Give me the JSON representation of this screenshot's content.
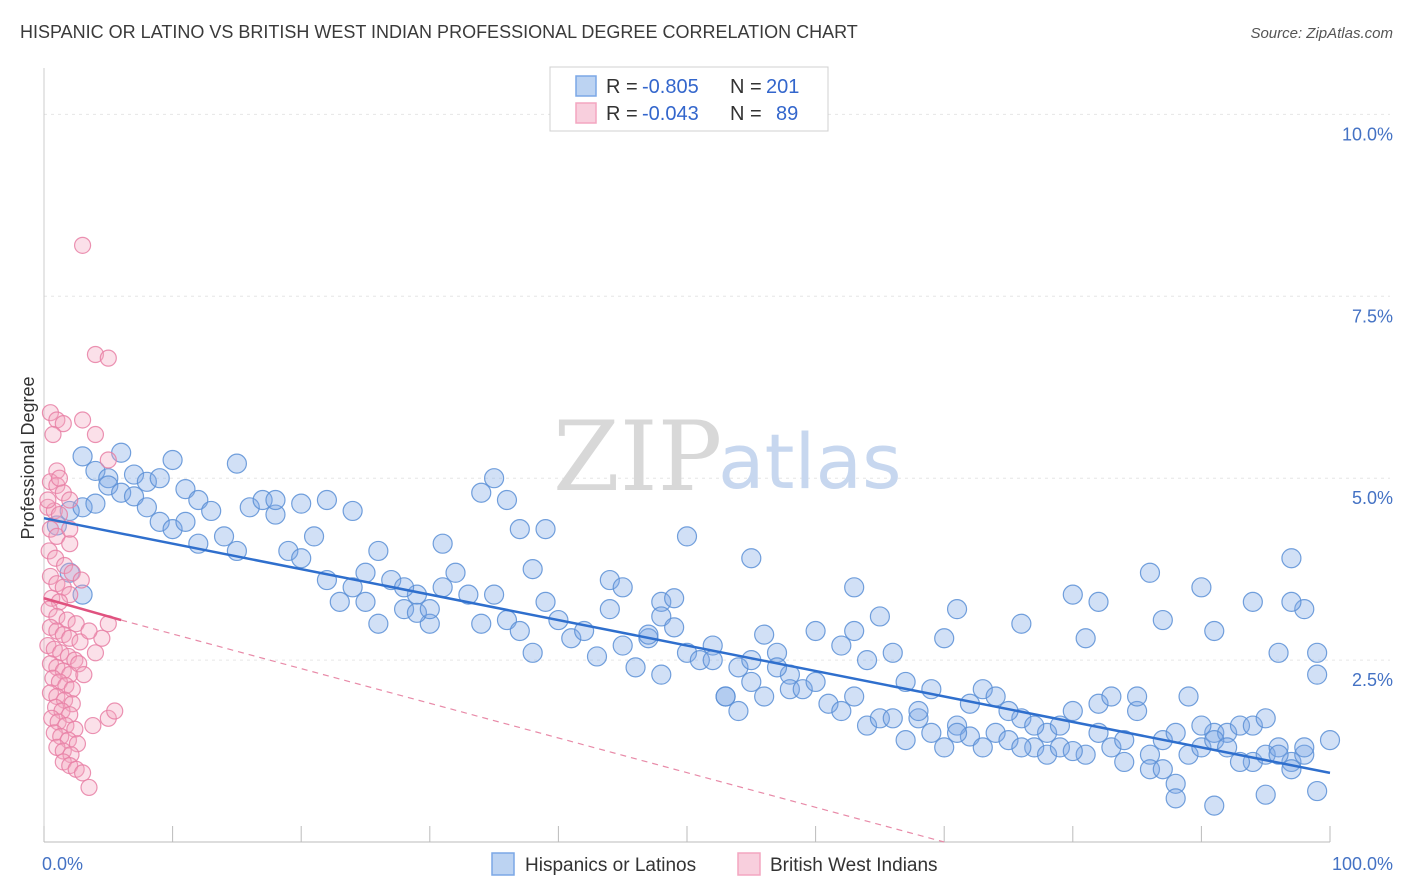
{
  "chart_data": {
    "type": "scatter",
    "title": "HISPANIC OR LATINO VS BRITISH WEST INDIAN PROFESSIONAL DEGREE CORRELATION CHART",
    "source": "Source: ZipAtlas.com",
    "ylabel": "Professional Degree",
    "xlim": [
      0,
      100
    ],
    "ylim": [
      0,
      10.5
    ],
    "x_tick_labels": [
      {
        "value": 0,
        "label": "0.0%"
      },
      {
        "value": 100,
        "label": "100.0%"
      }
    ],
    "y_tick_labels": [
      {
        "value": 2.5,
        "label": "2.5%"
      },
      {
        "value": 5.0,
        "label": "5.0%"
      },
      {
        "value": 7.5,
        "label": "7.5%"
      },
      {
        "value": 10.0,
        "label": "10.0%"
      }
    ],
    "grid": true,
    "watermark": {
      "part1": "ZIP",
      "part2": "atlas"
    },
    "legend": {
      "placement": "top-center",
      "entries": [
        {
          "r_label": "R =",
          "r_value": "-0.805",
          "n_label": "N =",
          "n_value": "201",
          "color": "#7ba7e6"
        },
        {
          "r_label": "R =",
          "r_value": "-0.043",
          "n_label": "N =",
          "n_value": "89",
          "color": "#f4a6c0"
        }
      ]
    },
    "series": [
      {
        "name": "Hispanics or Latinos",
        "color": "#7ba7e6",
        "stroke": "#5b8fd6",
        "trend": {
          "x0": 0,
          "y0": 4.45,
          "x1": 100,
          "y1": 0.95,
          "color": "#2f6fcd"
        },
        "points": [
          [
            3,
            5.3
          ],
          [
            4,
            5.1
          ],
          [
            5,
            5.0
          ],
          [
            6,
            5.35
          ],
          [
            7,
            5.05
          ],
          [
            8,
            4.95
          ],
          [
            9,
            5.0
          ],
          [
            10,
            5.25
          ],
          [
            11,
            4.85
          ],
          [
            12,
            4.7
          ],
          [
            2,
            4.55
          ],
          [
            3,
            4.6
          ],
          [
            4,
            4.65
          ],
          [
            5,
            4.9
          ],
          [
            6,
            4.8
          ],
          [
            7,
            4.75
          ],
          [
            8,
            4.6
          ],
          [
            9,
            4.4
          ],
          [
            10,
            4.3
          ],
          [
            12,
            4.1
          ],
          [
            1,
            4.35
          ],
          [
            2,
            3.7
          ],
          [
            3,
            3.4
          ],
          [
            14,
            4.2
          ],
          [
            15,
            4.0
          ],
          [
            16,
            4.6
          ],
          [
            17,
            4.7
          ],
          [
            18,
            4.5
          ],
          [
            19,
            4.0
          ],
          [
            20,
            3.9
          ],
          [
            22,
            3.6
          ],
          [
            23,
            3.3
          ],
          [
            24,
            3.5
          ],
          [
            25,
            3.3
          ],
          [
            26,
            3.0
          ],
          [
            27,
            3.6
          ],
          [
            28,
            3.2
          ],
          [
            29,
            3.4
          ],
          [
            30,
            3.0
          ],
          [
            31,
            3.5
          ],
          [
            11,
            4.4
          ],
          [
            13,
            4.55
          ],
          [
            15,
            5.2
          ],
          [
            18,
            4.7
          ],
          [
            20,
            4.65
          ],
          [
            21,
            4.2
          ],
          [
            22,
            4.7
          ],
          [
            24,
            4.55
          ],
          [
            25,
            3.7
          ],
          [
            26,
            4.0
          ],
          [
            28,
            3.5
          ],
          [
            29,
            3.15
          ],
          [
            30,
            3.2
          ],
          [
            32,
            3.7
          ],
          [
            33,
            3.4
          ],
          [
            34,
            3.0
          ],
          [
            35,
            3.4
          ],
          [
            36,
            3.05
          ],
          [
            37,
            2.9
          ],
          [
            38,
            2.6
          ],
          [
            39,
            3.3
          ],
          [
            40,
            3.05
          ],
          [
            41,
            2.8
          ],
          [
            42,
            2.9
          ],
          [
            43,
            2.55
          ],
          [
            44,
            3.2
          ],
          [
            45,
            2.7
          ],
          [
            46,
            2.4
          ],
          [
            47,
            2.8
          ],
          [
            48,
            2.3
          ],
          [
            37,
            4.3
          ],
          [
            36,
            4.7
          ],
          [
            35,
            5.0
          ],
          [
            34,
            4.8
          ],
          [
            31,
            4.1
          ],
          [
            38,
            3.75
          ],
          [
            39,
            4.3
          ],
          [
            44,
            3.6
          ],
          [
            45,
            3.5
          ],
          [
            48,
            3.3
          ],
          [
            49,
            3.35
          ],
          [
            50,
            2.6
          ],
          [
            51,
            2.5
          ],
          [
            52,
            2.7
          ],
          [
            53,
            2.0
          ],
          [
            54,
            2.4
          ],
          [
            55,
            2.2
          ],
          [
            56,
            2.0
          ],
          [
            57,
            2.6
          ],
          [
            58,
            2.3
          ],
          [
            47,
            2.85
          ],
          [
            48,
            3.1
          ],
          [
            49,
            2.95
          ],
          [
            52,
            2.5
          ],
          [
            53,
            2.0
          ],
          [
            54,
            1.8
          ],
          [
            55,
            2.5
          ],
          [
            56,
            2.85
          ],
          [
            57,
            2.4
          ],
          [
            58,
            2.1
          ],
          [
            59,
            2.1
          ],
          [
            60,
            2.2
          ],
          [
            61,
            1.9
          ],
          [
            62,
            1.8
          ],
          [
            63,
            2.0
          ],
          [
            64,
            1.6
          ],
          [
            65,
            1.7
          ],
          [
            66,
            1.7
          ],
          [
            67,
            1.4
          ],
          [
            68,
            1.7
          ],
          [
            50,
            4.2
          ],
          [
            55,
            3.9
          ],
          [
            60,
            2.9
          ],
          [
            62,
            2.7
          ],
          [
            63,
            2.9
          ],
          [
            64,
            2.5
          ],
          [
            65,
            3.1
          ],
          [
            66,
            2.6
          ],
          [
            67,
            2.2
          ],
          [
            68,
            1.8
          ],
          [
            69,
            1.5
          ],
          [
            70,
            1.3
          ],
          [
            71,
            1.6
          ],
          [
            72,
            1.45
          ],
          [
            73,
            1.3
          ],
          [
            74,
            1.5
          ],
          [
            75,
            1.4
          ],
          [
            76,
            1.7
          ],
          [
            77,
            1.3
          ],
          [
            78,
            1.5
          ],
          [
            69,
            2.1
          ],
          [
            70,
            2.8
          ],
          [
            71,
            1.5
          ],
          [
            72,
            1.9
          ],
          [
            73,
            2.1
          ],
          [
            74,
            2.0
          ],
          [
            75,
            1.8
          ],
          [
            76,
            1.3
          ],
          [
            77,
            1.6
          ],
          [
            78,
            1.2
          ],
          [
            79,
            1.3
          ],
          [
            80,
            1.8
          ],
          [
            81,
            1.2
          ],
          [
            82,
            1.5
          ],
          [
            83,
            1.3
          ],
          [
            84,
            1.1
          ],
          [
            85,
            1.8
          ],
          [
            86,
            1.2
          ],
          [
            87,
            1.4
          ],
          [
            88,
            1.5
          ],
          [
            79,
            1.6
          ],
          [
            80,
            1.25
          ],
          [
            81,
            2.8
          ],
          [
            82,
            1.9
          ],
          [
            83,
            2.0
          ],
          [
            84,
            1.4
          ],
          [
            85,
            2.0
          ],
          [
            86,
            1.0
          ],
          [
            87,
            1.0
          ],
          [
            88,
            0.8
          ],
          [
            89,
            1.2
          ],
          [
            90,
            1.3
          ],
          [
            91,
            1.5
          ],
          [
            92,
            1.5
          ],
          [
            93,
            1.6
          ],
          [
            94,
            1.1
          ],
          [
            95,
            1.2
          ],
          [
            96,
            1.3
          ],
          [
            97,
            1.1
          ],
          [
            98,
            1.2
          ],
          [
            89,
            2.0
          ],
          [
            90,
            1.6
          ],
          [
            91,
            1.4
          ],
          [
            92,
            1.3
          ],
          [
            93,
            1.1
          ],
          [
            94,
            1.6
          ],
          [
            95,
            1.7
          ],
          [
            96,
            1.2
          ],
          [
            97,
            1.0
          ],
          [
            98,
            1.3
          ],
          [
            63,
            3.5
          ],
          [
            71,
            3.2
          ],
          [
            76,
            3.0
          ],
          [
            80,
            3.4
          ],
          [
            82,
            3.3
          ],
          [
            87,
            3.05
          ],
          [
            90,
            3.5
          ],
          [
            91,
            2.9
          ],
          [
            94,
            3.3
          ],
          [
            98,
            3.2
          ],
          [
            99,
            2.3
          ],
          [
            96,
            2.6
          ],
          [
            97,
            3.3
          ],
          [
            97,
            3.9
          ],
          [
            99,
            2.6
          ],
          [
            100,
            1.4
          ],
          [
            88,
            0.6
          ],
          [
            91,
            0.5
          ],
          [
            95,
            0.65
          ],
          [
            99,
            0.7
          ],
          [
            86,
            3.7
          ]
        ]
      },
      {
        "name": "British West Indians",
        "color": "#f4a6c0",
        "stroke": "#e77fa5",
        "trend": {
          "x0": 0,
          "y0": 3.35,
          "x1": 6,
          "y1": 3.05,
          "color": "#e0527f"
        },
        "trend_ext": {
          "x0": 6,
          "y0": 3.05,
          "x1": 70,
          "y1": 0.0,
          "color": "#e88aa8"
        },
        "points": [
          [
            3,
            8.2
          ],
          [
            4,
            6.7
          ],
          [
            5,
            6.65
          ],
          [
            0.5,
            5.9
          ],
          [
            1,
            5.8
          ],
          [
            1.5,
            5.75
          ],
          [
            3,
            5.8
          ],
          [
            4,
            5.6
          ],
          [
            5,
            5.25
          ],
          [
            1,
            5.1
          ],
          [
            0.5,
            4.95
          ],
          [
            1,
            4.9
          ],
          [
            1.5,
            4.8
          ],
          [
            2,
            4.7
          ],
          [
            0.3,
            4.6
          ],
          [
            0.8,
            4.55
          ],
          [
            1.2,
            4.5
          ],
          [
            0.5,
            4.3
          ],
          [
            1,
            4.2
          ],
          [
            2,
            4.1
          ],
          [
            0.4,
            4.0
          ],
          [
            0.9,
            3.9
          ],
          [
            1.6,
            3.8
          ],
          [
            2.2,
            3.7
          ],
          [
            0.5,
            3.65
          ],
          [
            1,
            3.55
          ],
          [
            1.5,
            3.5
          ],
          [
            2,
            3.4
          ],
          [
            0.6,
            3.35
          ],
          [
            1.2,
            3.3
          ],
          [
            0.4,
            3.2
          ],
          [
            1,
            3.1
          ],
          [
            1.8,
            3.05
          ],
          [
            2.5,
            3.0
          ],
          [
            0.5,
            2.95
          ],
          [
            1,
            2.9
          ],
          [
            1.5,
            2.85
          ],
          [
            2,
            2.8
          ],
          [
            2.8,
            2.75
          ],
          [
            0.3,
            2.7
          ],
          [
            0.8,
            2.65
          ],
          [
            1.3,
            2.6
          ],
          [
            1.9,
            2.55
          ],
          [
            2.4,
            2.5
          ],
          [
            0.5,
            2.45
          ],
          [
            1,
            2.4
          ],
          [
            1.5,
            2.35
          ],
          [
            2,
            2.3
          ],
          [
            0.7,
            2.25
          ],
          [
            1.2,
            2.2
          ],
          [
            1.7,
            2.15
          ],
          [
            2.2,
            2.1
          ],
          [
            0.5,
            2.05
          ],
          [
            1,
            2.0
          ],
          [
            1.6,
            1.95
          ],
          [
            2.2,
            1.9
          ],
          [
            0.9,
            1.85
          ],
          [
            1.4,
            1.8
          ],
          [
            2,
            1.75
          ],
          [
            0.6,
            1.7
          ],
          [
            1.1,
            1.65
          ],
          [
            1.7,
            1.6
          ],
          [
            2.4,
            1.55
          ],
          [
            0.8,
            1.5
          ],
          [
            1.3,
            1.45
          ],
          [
            1.9,
            1.4
          ],
          [
            2.6,
            1.35
          ],
          [
            1,
            1.3
          ],
          [
            1.5,
            1.25
          ],
          [
            2.1,
            1.2
          ],
          [
            1.5,
            1.1
          ],
          [
            2,
            1.05
          ],
          [
            2.5,
            1.0
          ],
          [
            3,
            0.95
          ],
          [
            3.5,
            0.75
          ],
          [
            5,
            1.7
          ],
          [
            5.5,
            1.8
          ],
          [
            4,
            2.6
          ],
          [
            4.5,
            2.8
          ],
          [
            3.5,
            2.9
          ],
          [
            5,
            3.0
          ],
          [
            0.3,
            4.7
          ],
          [
            0.7,
            5.6
          ],
          [
            1.2,
            5.0
          ],
          [
            2,
            4.3
          ],
          [
            2.7,
            2.45
          ],
          [
            3.1,
            2.3
          ],
          [
            3.8,
            1.6
          ],
          [
            2.9,
            3.6
          ]
        ]
      }
    ]
  }
}
